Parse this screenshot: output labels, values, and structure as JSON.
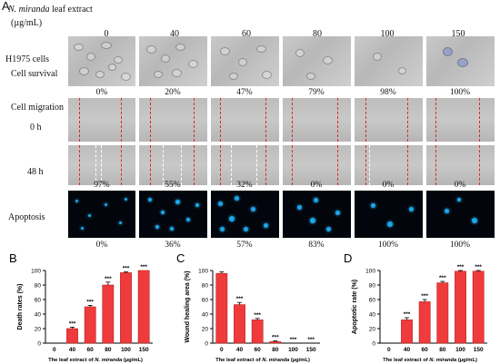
{
  "figure": {
    "panel_a_letter": "A",
    "header_species": "N. miranda",
    "header_rest": " leaf extract",
    "header_unit": "(µg/mL)",
    "concentrations": [
      "0",
      "40",
      "60",
      "80",
      "100",
      "150"
    ],
    "row_labels": {
      "cell_line": "H1975 cells",
      "survival": "Cell survival",
      "migration": "Cell migration",
      "t0": "0 h",
      "t48": "48 h",
      "apoptosis": "Apoptosis"
    },
    "percent_rows": {
      "death": [
        "0%",
        "20%",
        "47%",
        "79%",
        "98%",
        "100%"
      ],
      "wound": [
        "97%",
        "55%",
        "32%",
        "0%",
        "0%",
        "0%"
      ],
      "apoptotic": [
        "0%",
        "36%",
        "57%",
        "83%",
        "100%",
        "100%"
      ]
    }
  },
  "chart_data": [
    {
      "panel": "B",
      "type": "bar",
      "categories": [
        "0",
        "40",
        "60",
        "80",
        "100",
        "150"
      ],
      "values": [
        0,
        20,
        50,
        80,
        97,
        100
      ],
      "errors": [
        0,
        2,
        2,
        4,
        1,
        0
      ],
      "significance": [
        "",
        "***",
        "***",
        "***",
        "***",
        "***"
      ],
      "ylabel": "Death rates (%)",
      "xlabel_prefix": "The leaf extract of ",
      "xlabel_italic": "N. miranda",
      "xlabel_suffix": " (µg/mL)",
      "ylim": [
        0,
        100
      ],
      "yticks": [
        "0",
        "20",
        "40",
        "60",
        "80",
        "100"
      ],
      "bar_color": "#ef3b3b"
    },
    {
      "panel": "C",
      "type": "bar",
      "categories": [
        "0",
        "40",
        "60",
        "80",
        "100",
        "150"
      ],
      "values": [
        96,
        53,
        32,
        2,
        0,
        0
      ],
      "errors": [
        2,
        3,
        2,
        1,
        0,
        0
      ],
      "significance": [
        "",
        "***",
        "***",
        "***",
        "***",
        "***"
      ],
      "ylabel": "Wound healing area (%)",
      "xlabel_prefix": "The leaf extract of ",
      "xlabel_italic": "N. miranda",
      "xlabel_suffix": " (µg/mL)",
      "ylim": [
        0,
        100
      ],
      "yticks": [
        "0",
        "20",
        "40",
        "60",
        "80",
        "100"
      ],
      "bar_color": "#ef3b3b"
    },
    {
      "panel": "D",
      "type": "bar",
      "categories": [
        "0",
        "40",
        "60",
        "80",
        "100",
        "150"
      ],
      "values": [
        0,
        32,
        57,
        83,
        99,
        99
      ],
      "errors": [
        0,
        3,
        3,
        2,
        1,
        1
      ],
      "significance": [
        "",
        "***",
        "***",
        "***",
        "***",
        "***"
      ],
      "ylabel": "Apoptotic rate (%)",
      "xlabel_prefix": "The leaf extract of ",
      "xlabel_italic": "N. miranda",
      "xlabel_suffix": " (µg/mL)",
      "ylim": [
        0,
        100
      ],
      "yticks": [
        "0",
        "20",
        "40",
        "60",
        "80",
        "100"
      ],
      "bar_color": "#ef3b3b"
    }
  ]
}
